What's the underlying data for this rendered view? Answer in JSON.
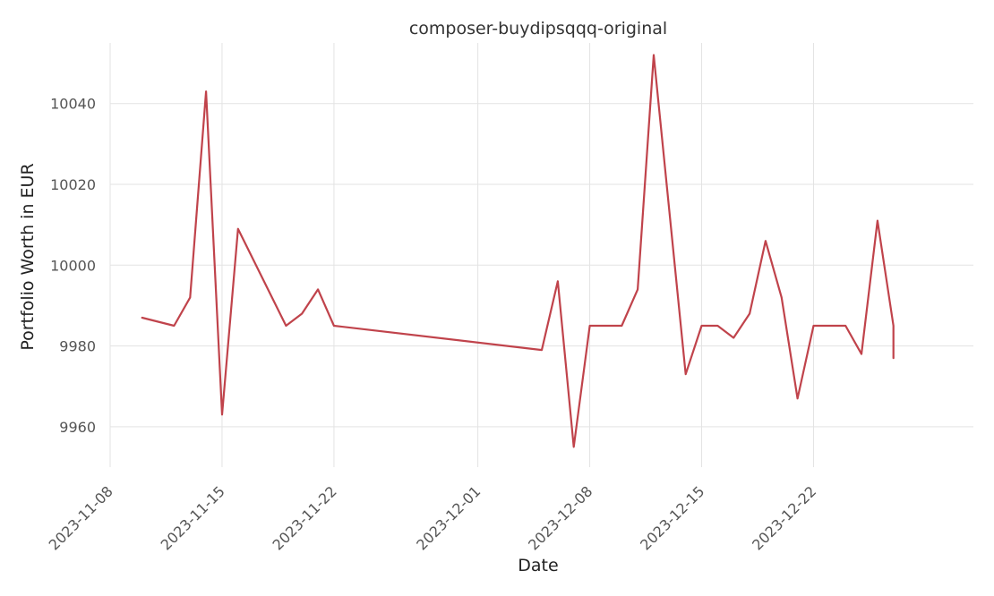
{
  "chart_data": {
    "type": "line",
    "title": "composer-buydipsqqq-original",
    "xlabel": "Date",
    "ylabel": "Portfolio Worth in EUR",
    "x_tick_labels": [
      "2023-11-08",
      "2023-11-15",
      "2023-11-22",
      "2023-12-01",
      "2023-12-08",
      "2023-12-15",
      "2023-12-22"
    ],
    "y_ticks": [
      9960,
      9980,
      10000,
      10020,
      10040
    ],
    "xlim": [
      "2023-11-08",
      "2024-01-01"
    ],
    "ylim": [
      9950,
      10055
    ],
    "grid": true,
    "series": [
      {
        "color": "#c0434b",
        "points": [
          [
            "2023-11-10",
            9987
          ],
          [
            "2023-11-12",
            9985
          ],
          [
            "2023-11-13",
            9992
          ],
          [
            "2023-11-14",
            10043
          ],
          [
            "2023-11-15",
            9963
          ],
          [
            "2023-11-16",
            10009
          ],
          [
            "2023-11-19",
            9985
          ],
          [
            "2023-11-20",
            9988
          ],
          [
            "2023-11-21",
            9994
          ],
          [
            "2023-11-22",
            9985
          ],
          [
            "2023-12-05",
            9979
          ],
          [
            "2023-12-05",
            9979
          ],
          [
            "2023-12-06",
            9996
          ],
          [
            "2023-12-07",
            9955
          ],
          [
            "2023-12-08",
            9985
          ],
          [
            "2023-12-10",
            9985
          ],
          [
            "2023-12-11",
            9994
          ],
          [
            "2023-12-12",
            10052
          ],
          [
            "2023-12-14",
            9973
          ],
          [
            "2023-12-15",
            9985
          ],
          [
            "2023-12-16",
            9985
          ],
          [
            "2023-12-17",
            9982
          ],
          [
            "2023-12-18",
            9988
          ],
          [
            "2023-12-19",
            10006
          ],
          [
            "2023-12-20",
            9992
          ],
          [
            "2023-12-21",
            9967
          ],
          [
            "2023-12-22",
            9985
          ],
          [
            "2023-12-24",
            9985
          ],
          [
            "2023-12-25",
            9978
          ],
          [
            "2023-12-26",
            10011
          ],
          [
            "2023-12-27",
            9985
          ],
          [
            "2023-12-27",
            9977
          ]
        ]
      }
    ]
  }
}
